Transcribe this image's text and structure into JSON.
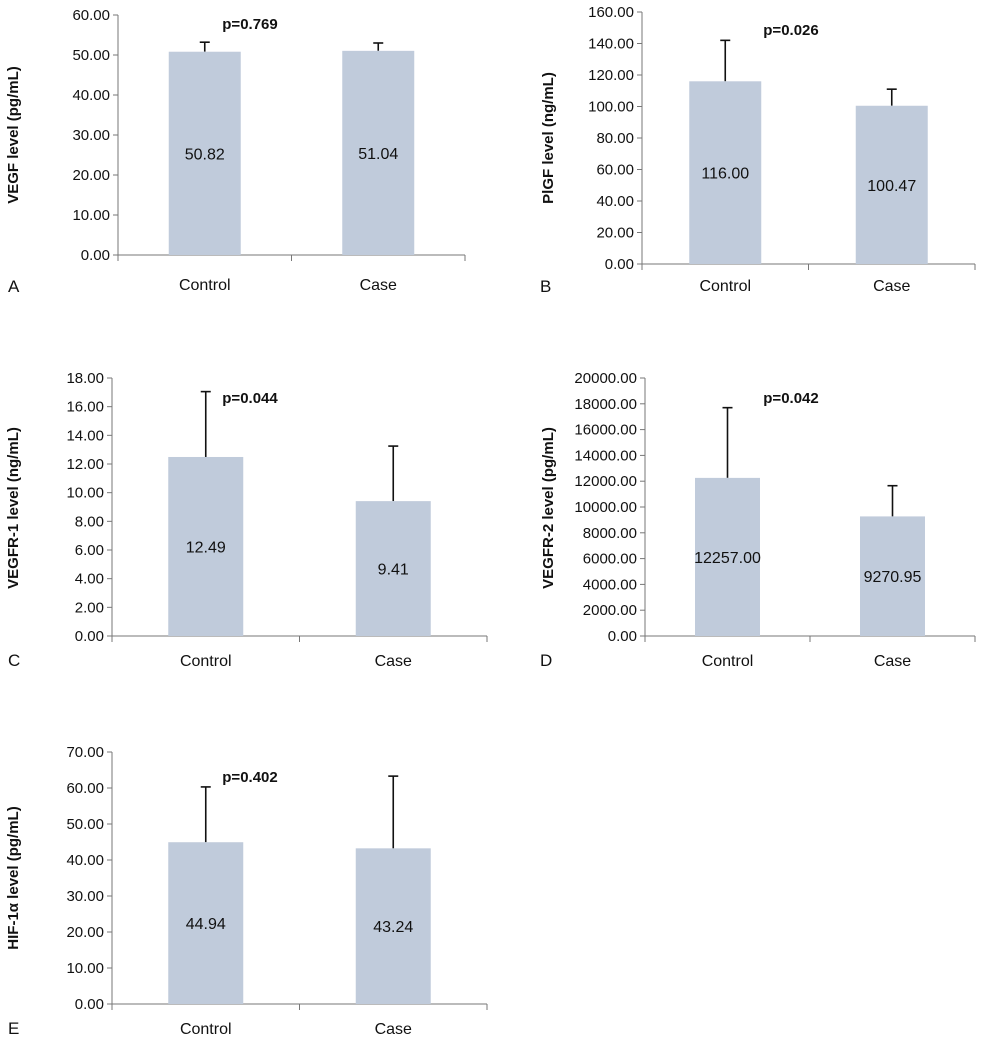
{
  "chart_data": [
    {
      "type": "bar",
      "panel_label": "A",
      "ylabel": "VEGF   level  (pg/mL)",
      "annotation": "p=0.769",
      "categories": [
        "Control",
        "Case"
      ],
      "values": [
        50.82,
        51.04
      ],
      "value_labels": [
        "50.82",
        "51.04"
      ],
      "error_upper": [
        53.2,
        53.0
      ],
      "ylim": [
        0,
        60
      ],
      "yticks": [
        "0.00",
        "10.00",
        "20.00",
        "30.00",
        "40.00",
        "50.00",
        "60.00"
      ],
      "bar_color": "#c0cbdb"
    },
    {
      "type": "bar",
      "panel_label": "B",
      "ylabel": "PlGF level (ng/mL)",
      "annotation": "p=0.026",
      "categories": [
        "Control",
        "Case"
      ],
      "values": [
        116.0,
        100.47
      ],
      "value_labels": [
        "116.00",
        "100.47"
      ],
      "error_upper": [
        142.0,
        111.0
      ],
      "ylim": [
        0,
        160
      ],
      "yticks": [
        "0.00",
        "20.00",
        "40.00",
        "60.00",
        "80.00",
        "100.00",
        "120.00",
        "140.00",
        "160.00"
      ],
      "bar_color": "#c0cbdb"
    },
    {
      "type": "bar",
      "panel_label": "C",
      "ylabel": "VEGFR-1 level (ng/mL)",
      "annotation": "p=0.044",
      "categories": [
        "Control",
        "Case"
      ],
      "values": [
        12.49,
        9.41
      ],
      "value_labels": [
        "12.49",
        "9.41"
      ],
      "error_upper": [
        17.05,
        13.25
      ],
      "ylim": [
        0,
        18
      ],
      "yticks": [
        "0.00",
        "2.00",
        "4.00",
        "6.00",
        "8.00",
        "10.00",
        "12.00",
        "14.00",
        "16.00",
        "18.00"
      ],
      "bar_color": "#c0cbdb"
    },
    {
      "type": "bar",
      "panel_label": "D",
      "ylabel": "VEGFR-2  level (pg/mL)",
      "annotation": "p=0.042",
      "categories": [
        "Control",
        "Case"
      ],
      "values": [
        12257.0,
        9270.95
      ],
      "value_labels": [
        "12257.00",
        "9270.95"
      ],
      "error_upper": [
        17700,
        11650
      ],
      "ylim": [
        0,
        20000
      ],
      "yticks": [
        "0.00",
        "2000.00",
        "4000.00",
        "6000.00",
        "8000.00",
        "10000.00",
        "12000.00",
        "14000.00",
        "16000.00",
        "18000.00",
        "20000.00"
      ],
      "bar_color": "#c0cbdb"
    },
    {
      "type": "bar",
      "panel_label": "E",
      "ylabel": "HIF-1α level (pg/mL)",
      "annotation": "p=0.402",
      "categories": [
        "Control",
        "Case"
      ],
      "values": [
        44.94,
        43.24
      ],
      "value_labels": [
        "44.94",
        "43.24"
      ],
      "error_upper": [
        60.3,
        63.3
      ],
      "ylim": [
        0,
        70
      ],
      "yticks": [
        "0.00",
        "10.00",
        "20.00",
        "30.00",
        "40.00",
        "50.00",
        "60.00",
        "70.00"
      ],
      "bar_color": "#c0cbdb"
    }
  ]
}
